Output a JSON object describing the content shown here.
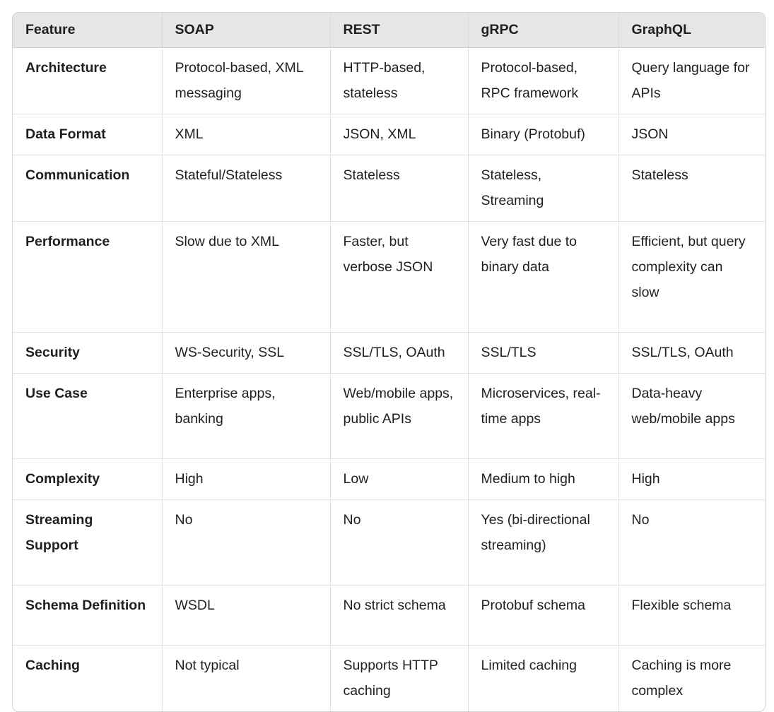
{
  "table": {
    "headers": [
      "Feature",
      "SOAP",
      "REST",
      "gRPC",
      "GraphQL"
    ],
    "rows": [
      [
        "Architecture",
        "Protocol-based, XML messaging",
        "HTTP-based, stateless",
        "Protocol-based, RPC framework",
        "Query language for APIs"
      ],
      [
        "Data Format",
        "XML",
        "JSON, XML",
        "Binary (Protobuf)",
        "JSON"
      ],
      [
        "Communication",
        "Stateful/Stateless",
        "Stateless",
        "Stateless, Streaming",
        "Stateless"
      ],
      [
        "Performance",
        "Slow due to XML",
        "Faster, but verbose JSON",
        "Very fast due to binary data",
        "Efficient, but query complexity can slow"
      ],
      [
        "Security",
        "WS-Security, SSL",
        "SSL/TLS, OAuth",
        "SSL/TLS",
        "SSL/TLS, OAuth"
      ],
      [
        "Use Case",
        "Enterprise apps, banking",
        "Web/mobile apps, public APIs",
        "Microservices, real-time apps",
        "Data-heavy web/mobile apps"
      ],
      [
        "Complexity",
        "High",
        "Low",
        "Medium to high",
        "High"
      ],
      [
        "Streaming Support",
        "No",
        "No",
        "Yes (bi-directional streaming)",
        "No"
      ],
      [
        "Schema Definition",
        "WSDL",
        "No strict schema",
        "Protobuf schema",
        "Flexible schema"
      ],
      [
        "Caching",
        "Not typical",
        "Supports HTTP caching",
        "Limited caching",
        "Caching is more complex"
      ]
    ]
  }
}
